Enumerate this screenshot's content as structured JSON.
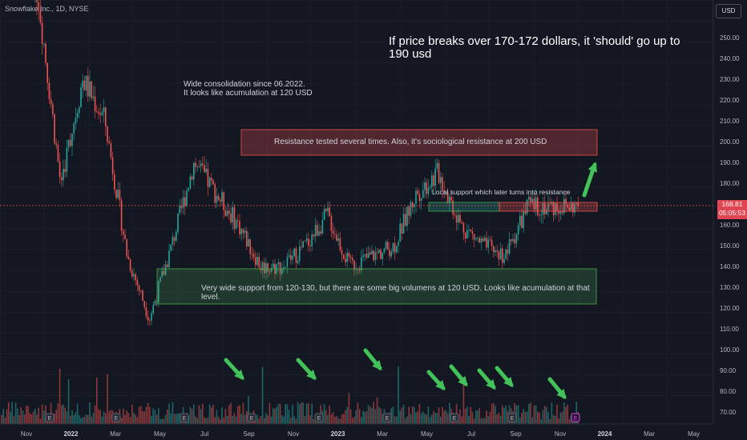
{
  "header": {
    "symbol_title": "Snowflake Inc., 1D, NYSE",
    "currency": "USD"
  },
  "price_label": {
    "price": "168.81",
    "countdown": "05:05:53"
  },
  "annotations": {
    "top_note": "If price breaks over 170-172 dollars, it 'should' go up to 190 usd",
    "consolidation_note": [
      "Wide consolidation since 06.2022.",
      "It looks like acumulation at 120 USD"
    ],
    "resistance_note": "Resistance tested several times. Also, it's sociological resistance at 200 USD",
    "local_support_note": "Local support which later turns into resistance",
    "support_note": "Very wide support from 120-130, but there are some big volumens at 120 USD. Looks like acumulation at that level."
  },
  "colors": {
    "background": "#131722",
    "up": "#26a69a",
    "down": "#ef5350",
    "arrow": "#43c25a"
  },
  "chart_data": {
    "type": "candlestick",
    "title": "Snowflake Inc., 1D, NYSE",
    "y_scale": "linear",
    "ylim": [
      64,
      258
    ],
    "y_ticks": [
      70,
      80,
      90,
      100,
      110,
      120,
      130,
      140,
      150,
      160,
      170,
      180,
      190,
      200,
      210,
      220,
      230,
      240,
      250
    ],
    "x_ticks": [
      "Nov",
      "2022",
      "Mar",
      "May",
      "Jul",
      "Sep",
      "Nov",
      "2023",
      "Mar",
      "May",
      "Jul",
      "Sep",
      "Nov",
      "2024",
      "Mar",
      "May"
    ],
    "price_path_approx": [
      {
        "date": "2021-11",
        "close": 320
      },
      {
        "date": "2022-01",
        "close": 270
      },
      {
        "date": "2022-02",
        "close": 180
      },
      {
        "date": "2022-03",
        "close": 230
      },
      {
        "date": "2022-04",
        "close": 210
      },
      {
        "date": "2022-05",
        "close": 145
      },
      {
        "date": "2022-06",
        "close": 115
      },
      {
        "date": "2022-07",
        "close": 150
      },
      {
        "date": "2022-08",
        "close": 190
      },
      {
        "date": "2022-09",
        "close": 175
      },
      {
        "date": "2022-10",
        "close": 160
      },
      {
        "date": "2022-11",
        "close": 140
      },
      {
        "date": "2022-12",
        "close": 140
      },
      {
        "date": "2023-01",
        "close": 150
      },
      {
        "date": "2023-02",
        "close": 165
      },
      {
        "date": "2023-03",
        "close": 140
      },
      {
        "date": "2023-04",
        "close": 145
      },
      {
        "date": "2023-05",
        "close": 150
      },
      {
        "date": "2023-06",
        "close": 175
      },
      {
        "date": "2023-07",
        "close": 185
      },
      {
        "date": "2023-08",
        "close": 160
      },
      {
        "date": "2023-09",
        "close": 150
      },
      {
        "date": "2023-10",
        "close": 145
      },
      {
        "date": "2023-11",
        "close": 168.81
      }
    ],
    "last_price": 168.81,
    "zones": [
      {
        "label": "resistance",
        "from": 193,
        "to": 205
      },
      {
        "label": "local support",
        "from": 165.5,
        "to": 170
      },
      {
        "label": "support",
        "from": 121,
        "to": 138
      }
    ],
    "legend": "none",
    "grid": true
  }
}
